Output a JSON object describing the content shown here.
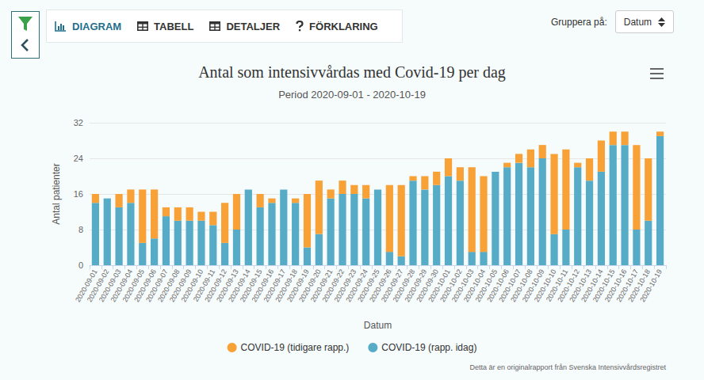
{
  "chart_data": {
    "type": "bar",
    "stacked": true,
    "title": "Antal som intensivvårdas med Covid-19 per dag",
    "subtitle": "Period 2020-09-01 - 2020-10-19",
    "x_label": "Datum",
    "y_label": "Antal patienter",
    "categories": [
      "2020-09-01",
      "2020-09-02",
      "2020-09-03",
      "2020-09-04",
      "2020-09-05",
      "2020-09-06",
      "2020-09-07",
      "2020-09-08",
      "2020-09-09",
      "2020-09-10",
      "2020-09-11",
      "2020-09-12",
      "2020-09-13",
      "2020-09-14",
      "2020-09-15",
      "2020-09-16",
      "2020-09-17",
      "2020-09-18",
      "2020-09-19",
      "2020-09-20",
      "2020-09-21",
      "2020-09-22",
      "2020-09-23",
      "2020-09-24",
      "2020-09-25",
      "2020-09-26",
      "2020-09-27",
      "2020-09-28",
      "2020-09-29",
      "2020-09-30",
      "2020-10-01",
      "2020-10-02",
      "2020-10-03",
      "2020-10-04",
      "2020-10-05",
      "2020-10-06",
      "2020-10-07",
      "2020-10-08",
      "2020-10-09",
      "2020-10-10",
      "2020-10-11",
      "2020-10-12",
      "2020-10-13",
      "2020-10-14",
      "2020-10-15",
      "2020-10-16",
      "2020-10-17",
      "2020-10-18",
      "2020-10-19"
    ],
    "series": [
      {
        "name": "COVID-19 (tidigare rapp.)",
        "color": "#f7a136",
        "values": [
          2,
          0,
          3,
          3,
          12,
          11,
          2,
          3,
          3,
          2,
          3,
          9,
          8,
          0,
          3,
          1,
          0,
          1,
          12,
          12,
          2,
          3,
          2,
          3,
          0,
          15,
          16,
          1,
          3,
          3,
          4,
          3,
          19,
          17,
          0,
          1,
          2,
          4,
          3,
          18,
          18,
          1,
          5,
          7,
          3,
          3,
          19,
          14,
          1
        ]
      },
      {
        "name": "COVID-19 (rapp. idag)",
        "color": "#56abc7",
        "values": [
          14,
          15,
          13,
          14,
          5,
          6,
          11,
          10,
          10,
          10,
          9,
          5,
          8,
          17,
          13,
          14,
          17,
          14,
          4,
          7,
          15,
          16,
          16,
          15,
          17,
          3,
          2,
          19,
          17,
          18,
          20,
          19,
          3,
          3,
          21,
          22,
          23,
          22,
          24,
          7,
          8,
          22,
          19,
          21,
          27,
          27,
          8,
          10,
          29
        ]
      }
    ],
    "ylim": [
      0,
      32
    ],
    "yticks": [
      0,
      8,
      16,
      24,
      32
    ],
    "grid": true,
    "legend": "bottom"
  },
  "page": {
    "tabs": [
      "DIAGRAM",
      "TABELL",
      "DETALJER",
      "FÖRKLARING"
    ],
    "active_tab": "DIAGRAM",
    "group_by_label": "Gruppera på:",
    "group_by_value": "Datum",
    "source_note": "Detta är en originalrapport från Svenska Intensivvårdsregistret"
  }
}
